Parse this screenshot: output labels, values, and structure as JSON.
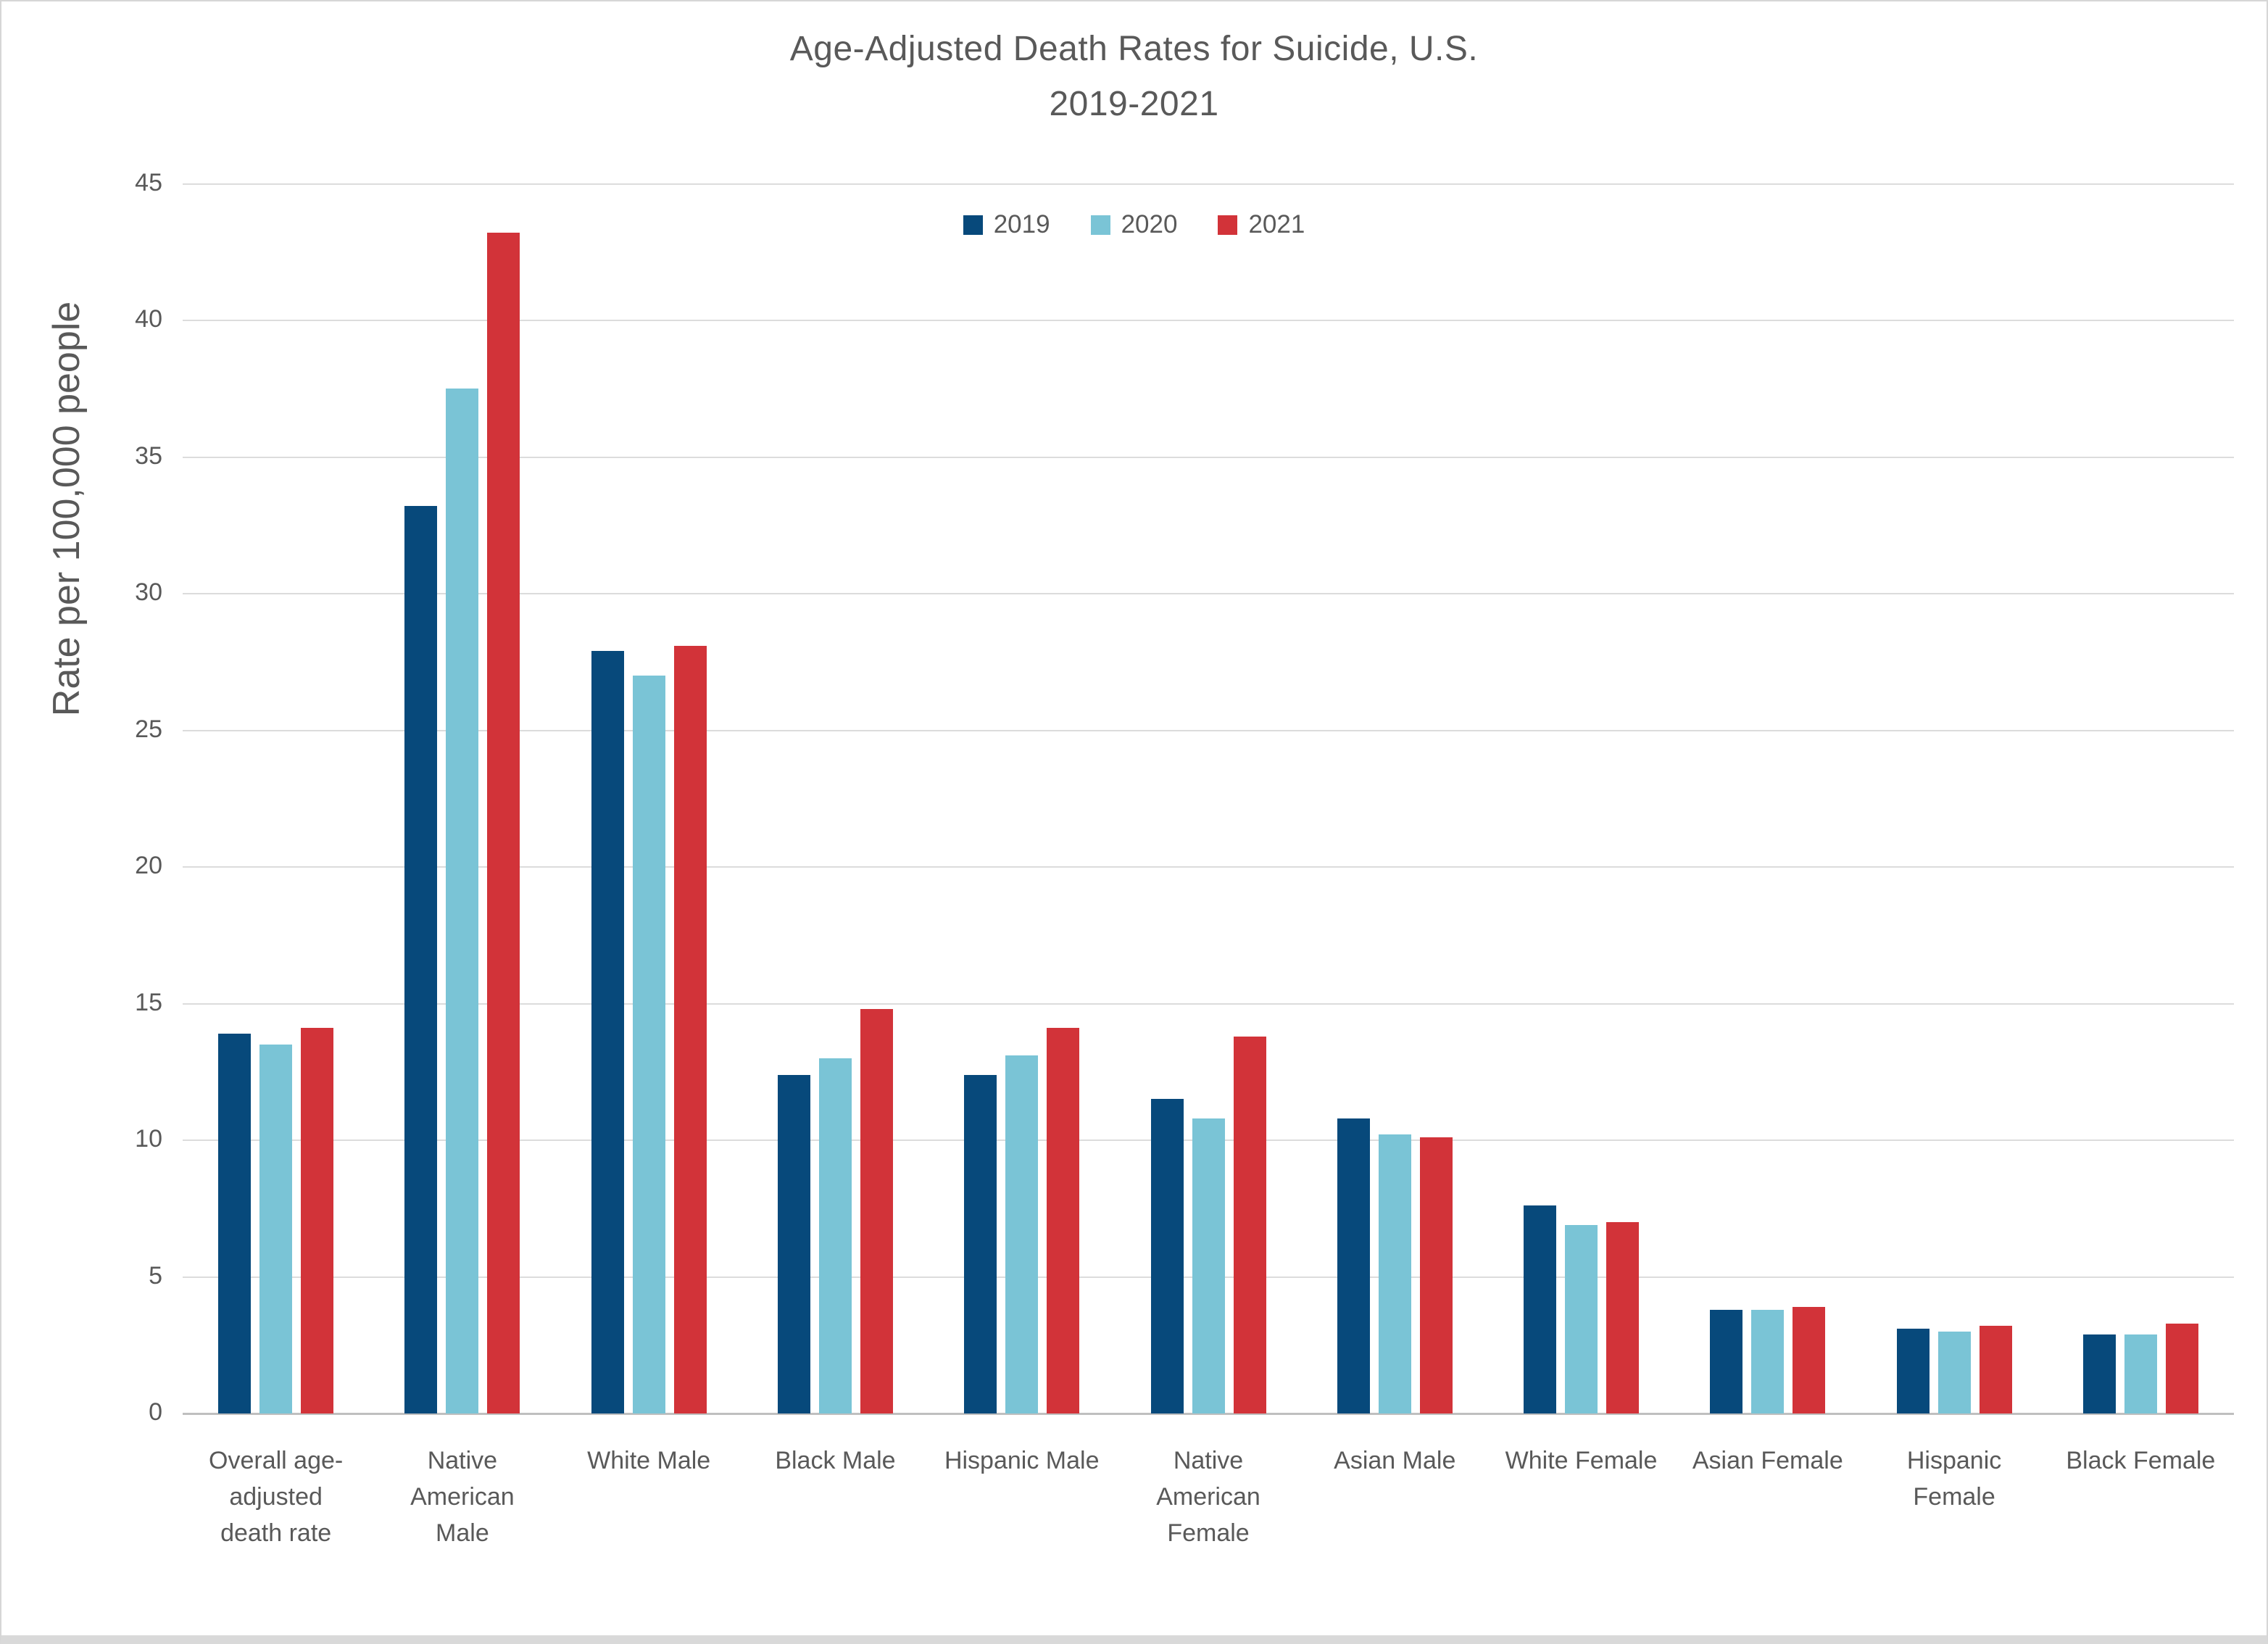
{
  "title": {
    "line1": "Age-Adjusted Death Rates for Suicide, U.S.",
    "line2": "2019-2021"
  },
  "chart_data": {
    "type": "bar",
    "title": "Age-Adjusted Death Rates for Suicide, U.S. 2019-2021",
    "ylabel": "Rate per 100,000 people",
    "xlabel": "",
    "ylim": [
      0,
      45
    ],
    "ytick_step": 5,
    "grid": true,
    "legend_position": "top-center",
    "categories": [
      "Overall age-adjusted death rate",
      "Native American Male",
      "White Male",
      "Black Male",
      "Hispanic Male",
      "Native American Female",
      "Asian Male",
      "White Female",
      "Asian Female",
      "Hispanic Female",
      "Black Female"
    ],
    "series": [
      {
        "name": "2019",
        "color": "#07497B",
        "values": [
          13.9,
          33.2,
          27.9,
          12.4,
          12.4,
          11.5,
          10.8,
          7.6,
          3.8,
          3.1,
          2.9
        ]
      },
      {
        "name": "2020",
        "color": "#7AC4D6",
        "values": [
          13.5,
          37.5,
          27.0,
          13.0,
          13.1,
          10.8,
          10.2,
          6.9,
          3.8,
          3.0,
          2.9
        ]
      },
      {
        "name": "2021",
        "color": "#D23339",
        "values": [
          14.1,
          43.2,
          28.1,
          14.8,
          14.1,
          13.8,
          10.1,
          7.0,
          3.9,
          3.2,
          3.3
        ]
      }
    ]
  },
  "colors": {
    "title_text": "#595959",
    "axis_text": "#595959",
    "gridline": "#dcdcdc",
    "axis_line": "#bfbfbf",
    "background": "#ffffff",
    "page_border": "#d9d9d9"
  }
}
